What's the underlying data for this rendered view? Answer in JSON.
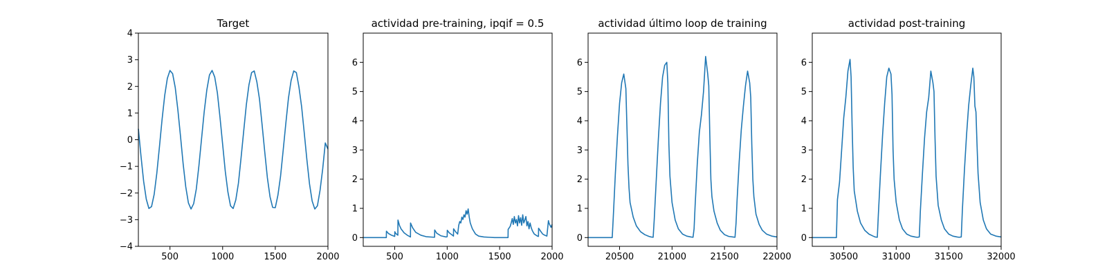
{
  "figure": {
    "line_color": "#1f77b4"
  },
  "chart_data": [
    {
      "type": "line",
      "title": "Target",
      "xlabel": "",
      "ylabel": "",
      "xlim": [
        200,
        2000
      ],
      "ylim": [
        -4,
        4
      ],
      "xticks": [
        500,
        1000,
        1500,
        2000
      ],
      "xtick_labels": [
        "500",
        "1000",
        "1500",
        "2000"
      ],
      "yticks": [
        -4,
        -3,
        -2,
        -1,
        0,
        1,
        2,
        3,
        4
      ],
      "ytick_labels": [
        "−4",
        "−3",
        "−2",
        "−1",
        "0",
        "1",
        "2",
        "3",
        "4"
      ],
      "series": [
        {
          "x": [
            200,
            225,
            250,
            275,
            300,
            325,
            350,
            375,
            400,
            425,
            450,
            475,
            500,
            525,
            550,
            575,
            600,
            625,
            650,
            675,
            700,
            725,
            750,
            775,
            800,
            825,
            850,
            875,
            900,
            925,
            950,
            975,
            1000,
            1025,
            1050,
            1075,
            1100,
            1125,
            1150,
            1175,
            1200,
            1225,
            1250,
            1275,
            1300,
            1325,
            1350,
            1375,
            1400,
            1425,
            1450,
            1475,
            1500,
            1525,
            1550,
            1575,
            1600,
            1625,
            1650,
            1675,
            1700,
            1725,
            1750,
            1775,
            1800,
            1825,
            1850,
            1875,
            1900,
            1925,
            1950,
            1975,
            2000
          ],
          "y": [
            0.41,
            -0.62,
            -1.56,
            -2.23,
            -2.58,
            -2.51,
            -2.05,
            -1.26,
            -0.27,
            0.76,
            1.66,
            2.3,
            2.6,
            2.48,
            1.96,
            1.12,
            0.13,
            -0.9,
            -1.77,
            -2.37,
            -2.6,
            -2.4,
            -1.85,
            -0.97,
            0.04,
            1.05,
            1.87,
            2.43,
            2.6,
            2.35,
            1.76,
            0.84,
            -0.17,
            -1.18,
            -1.96,
            -2.48,
            -2.58,
            -2.26,
            -1.63,
            -0.68,
            0.32,
            1.31,
            2.06,
            2.52,
            2.58,
            2.17,
            1.52,
            0.55,
            -0.46,
            -1.43,
            -2.14,
            -2.54,
            -2.55,
            -2.08,
            -1.37,
            -0.39,
            0.61,
            1.56,
            2.22,
            2.58,
            2.52,
            1.97,
            1.24,
            0.26,
            -0.75,
            -1.66,
            -2.3,
            -2.6,
            -2.48,
            -1.9,
            -1.1,
            -0.12,
            -0.35
          ]
        }
      ]
    },
    {
      "type": "line",
      "title": "actividad pre-training, ipqif = 0.5",
      "xlabel": "",
      "ylabel": "",
      "xlim": [
        200,
        2000
      ],
      "ylim": [
        -0.3,
        7
      ],
      "xticks": [
        500,
        1000,
        1500,
        2000
      ],
      "xtick_labels": [
        "500",
        "1000",
        "1500",
        "2000"
      ],
      "yticks": [
        0,
        1,
        2,
        3,
        4,
        5,
        6
      ],
      "ytick_labels": [
        "0",
        "1",
        "2",
        "3",
        "4",
        "5",
        "6"
      ],
      "series": [
        {
          "x": [
            200,
            420,
            421,
            440,
            470,
            500,
            501,
            510,
            530,
            531,
            545,
            560,
            590,
            620,
            640,
            650,
            651,
            670,
            700,
            750,
            800,
            880,
            881,
            900,
            940,
            990,
            1000,
            1001,
            1020,
            1050,
            1060,
            1061,
            1080,
            1100,
            1110,
            1120,
            1130,
            1140,
            1150,
            1160,
            1170,
            1180,
            1190,
            1200,
            1210,
            1220,
            1240,
            1270,
            1300,
            1350,
            1400,
            1450,
            1500,
            1580,
            1581,
            1600,
            1610,
            1620,
            1630,
            1640,
            1650,
            1660,
            1670,
            1680,
            1690,
            1700,
            1710,
            1720,
            1730,
            1740,
            1750,
            1760,
            1770,
            1780,
            1790,
            1800,
            1810,
            1820,
            1830,
            1860,
            1870,
            1871,
            1890,
            1910,
            1930,
            1950,
            1965,
            1970,
            1980,
            1990,
            2000
          ],
          "y": [
            0,
            0,
            0.22,
            0.14,
            0.08,
            0.04,
            0.2,
            0.14,
            0.08,
            0.6,
            0.42,
            0.3,
            0.16,
            0.08,
            0.04,
            0.02,
            0.5,
            0.34,
            0.18,
            0.08,
            0.03,
            0.01,
            0.26,
            0.15,
            0.06,
            0.02,
            0.03,
            0.25,
            0.16,
            0.08,
            0.05,
            0.3,
            0.2,
            0.12,
            0.42,
            0.55,
            0.5,
            0.7,
            0.62,
            0.78,
            0.7,
            0.92,
            0.8,
            0.98,
            0.7,
            0.5,
            0.3,
            0.12,
            0.05,
            0.02,
            0.01,
            0,
            0,
            0,
            0.28,
            0.38,
            0.5,
            0.65,
            0.45,
            0.72,
            0.5,
            0.62,
            0.4,
            0.75,
            0.5,
            0.68,
            0.42,
            0.78,
            0.5,
            0.6,
            0.72,
            0.4,
            0.55,
            0.3,
            0.5,
            0.35,
            0.25,
            0.18,
            0.12,
            0.05,
            0.04,
            0.32,
            0.22,
            0.12,
            0.08,
            0.05,
            0.58,
            0.5,
            0.42,
            0.35,
            0.45
          ]
        }
      ]
    },
    {
      "type": "line",
      "title": "actividad último loop de training",
      "xlabel": "",
      "ylabel": "",
      "xlim": [
        20200,
        22000
      ],
      "ylim": [
        -0.3,
        7
      ],
      "xticks": [
        20500,
        21000,
        21500,
        22000
      ],
      "xtick_labels": [
        "20500",
        "21000",
        "21500",
        "22000"
      ],
      "yticks": [
        0,
        1,
        2,
        3,
        4,
        5,
        6
      ],
      "ytick_labels": [
        "0",
        "1",
        "2",
        "3",
        "4",
        "5",
        "6"
      ],
      "series": [
        {
          "x": [
            20200,
            20430,
            20440,
            20460,
            20480,
            20500,
            20520,
            20540,
            20560,
            20570,
            20580,
            20590,
            20600,
            20630,
            20660,
            20700,
            20740,
            20780,
            20800,
            20820,
            20830,
            20850,
            20870,
            20890,
            20910,
            20930,
            20950,
            20960,
            20970,
            20980,
            21000,
            21030,
            21060,
            21100,
            21140,
            21180,
            21200,
            21210,
            21220,
            21240,
            21260,
            21280,
            21300,
            21320,
            21340,
            21350,
            21360,
            21370,
            21380,
            21400,
            21430,
            21460,
            21500,
            21540,
            21580,
            21600,
            21610,
            21620,
            21640,
            21660,
            21680,
            21700,
            21720,
            21740,
            21750,
            21760,
            21770,
            21780,
            21800,
            21830,
            21860,
            21900,
            21950,
            22000
          ],
          "y": [
            0,
            0,
            0.7,
            2.2,
            3.5,
            4.6,
            5.3,
            5.6,
            5.1,
            3.8,
            2.5,
            1.7,
            1.2,
            0.7,
            0.4,
            0.2,
            0.1,
            0.04,
            0.02,
            0.01,
            0.6,
            2.0,
            3.4,
            4.6,
            5.5,
            5.9,
            6.0,
            5.3,
            3.2,
            2.1,
            1.2,
            0.6,
            0.3,
            0.12,
            0.05,
            0.02,
            0.01,
            0.3,
            1.1,
            2.5,
            3.6,
            4.2,
            5.0,
            6.2,
            5.6,
            5.2,
            3.5,
            2.0,
            1.4,
            0.9,
            0.5,
            0.25,
            0.1,
            0.04,
            0.02,
            0.01,
            0.5,
            1.3,
            2.6,
            3.7,
            4.5,
            5.2,
            5.7,
            5.3,
            4.8,
            3.2,
            2.0,
            1.4,
            0.8,
            0.45,
            0.25,
            0.12,
            0.05,
            0.02
          ]
        }
      ]
    },
    {
      "type": "line",
      "title": "actividad post-training",
      "xlabel": "",
      "ylabel": "",
      "xlim": [
        30200,
        32000
      ],
      "ylim": [
        -0.3,
        7
      ],
      "xticks": [
        30500,
        31000,
        31500,
        32000
      ],
      "xtick_labels": [
        "30500",
        "31000",
        "31500",
        "32000"
      ],
      "yticks": [
        0,
        1,
        2,
        3,
        4,
        5,
        6
      ],
      "ytick_labels": [
        "0",
        "1",
        "2",
        "3",
        "4",
        "5",
        "6"
      ],
      "series": [
        {
          "x": [
            30200,
            30430,
            30440,
            30460,
            30480,
            30500,
            30520,
            30540,
            30560,
            30570,
            30580,
            30590,
            30600,
            30630,
            30660,
            30700,
            30740,
            30780,
            30800,
            30820,
            30830,
            30850,
            30870,
            30890,
            30910,
            30930,
            30950,
            30960,
            30970,
            30980,
            31000,
            31030,
            31060,
            31100,
            31140,
            31180,
            31200,
            31220,
            31230,
            31250,
            31270,
            31290,
            31310,
            31330,
            31350,
            31360,
            31370,
            31380,
            31400,
            31430,
            31460,
            31500,
            31540,
            31580,
            31600,
            31620,
            31630,
            31650,
            31670,
            31690,
            31710,
            31730,
            31740,
            31750,
            31760,
            31770,
            31780,
            31800,
            31830,
            31860,
            31900,
            31950,
            32000
          ],
          "y": [
            0,
            0,
            1.3,
            1.9,
            3.0,
            4.1,
            4.8,
            5.7,
            6.1,
            5.5,
            3.8,
            2.4,
            1.6,
            0.9,
            0.5,
            0.25,
            0.12,
            0.05,
            0.02,
            0.01,
            0.8,
            2.2,
            3.5,
            4.6,
            5.5,
            5.8,
            5.6,
            4.9,
            3.0,
            2.0,
            1.2,
            0.6,
            0.3,
            0.12,
            0.05,
            0.02,
            0.01,
            0.02,
            0.9,
            2.2,
            3.4,
            4.3,
            4.8,
            5.7,
            5.3,
            5.0,
            3.4,
            2.1,
            1.1,
            0.6,
            0.3,
            0.12,
            0.05,
            0.02,
            0.01,
            0.02,
            0.9,
            2.3,
            3.5,
            4.5,
            5.2,
            5.8,
            5.5,
            4.5,
            4.3,
            3.2,
            2.2,
            1.2,
            0.6,
            0.3,
            0.12,
            0.05,
            0.02
          ]
        }
      ]
    }
  ]
}
